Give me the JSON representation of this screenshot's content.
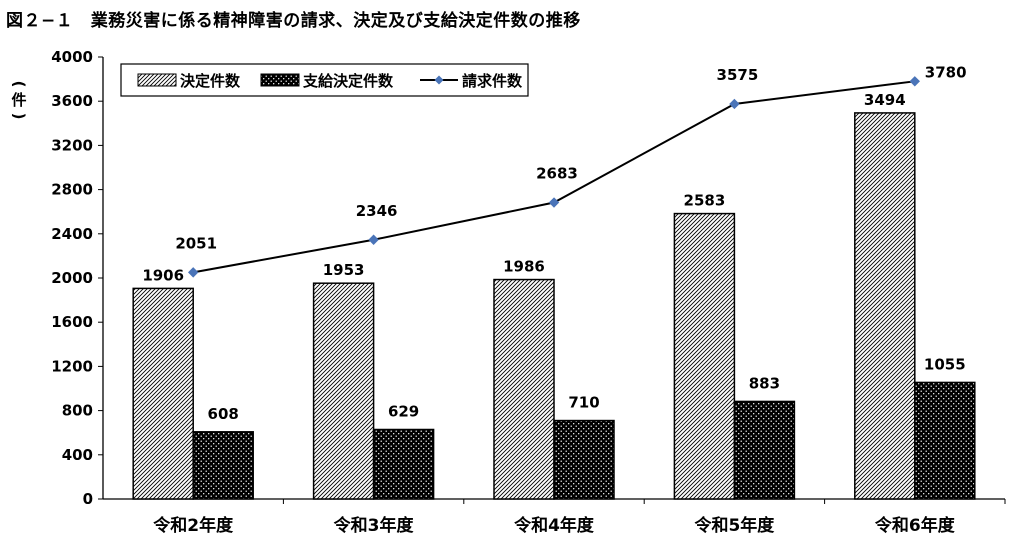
{
  "title": "図２−１　業務災害に係る精神障害の請求、決定及び支給決定件数の推移",
  "y_unit": "件",
  "chart_data": {
    "type": "bar",
    "title": "図２−１　業務災害に係る精神障害の請求、決定及び支給決定件数の推移",
    "ylabel": "（件）",
    "xlabel": "",
    "ylim": [
      0,
      4000
    ],
    "yticks": [
      0,
      400,
      800,
      1200,
      1600,
      2000,
      2400,
      2800,
      3200,
      3600,
      4000
    ],
    "categories": [
      "令和2年度",
      "令和3年度",
      "令和4年度",
      "令和5年度",
      "令和6年度"
    ],
    "series": [
      {
        "name": "決定件数",
        "kind": "bar",
        "pattern": "diagonal-hatch",
        "values": [
          1906,
          1953,
          1986,
          2583,
          3494
        ]
      },
      {
        "name": "支給決定件数",
        "kind": "bar",
        "pattern": "black-dotted",
        "values": [
          608,
          629,
          710,
          883,
          1055
        ]
      },
      {
        "name": "請求件数",
        "kind": "line",
        "color": "#000000",
        "marker_color": "#4a74b8",
        "values": [
          2051,
          2346,
          2683,
          3575,
          3780
        ]
      }
    ],
    "legend": "top-left",
    "grid": false
  }
}
